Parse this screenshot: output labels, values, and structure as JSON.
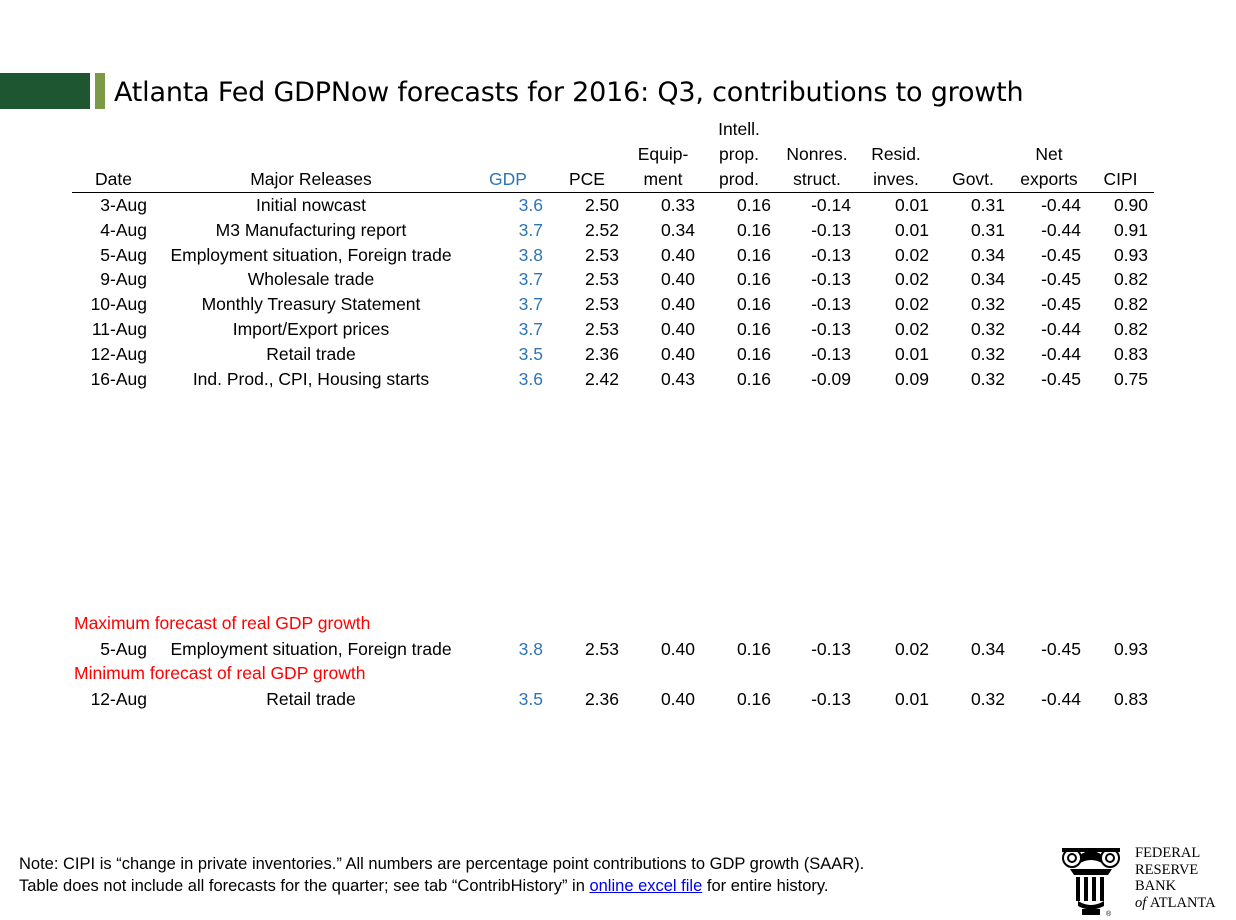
{
  "title": "Atlanta Fed GDPNow forecasts for 2016: Q3, contributions to growth",
  "columns": [
    {
      "key": "date",
      "lines": [
        "",
        "",
        "Date"
      ]
    },
    {
      "key": "release",
      "lines": [
        "",
        "",
        "Major Releases"
      ]
    },
    {
      "key": "gdp",
      "lines": [
        "",
        "",
        "GDP"
      ]
    },
    {
      "key": "pce",
      "lines": [
        "",
        "",
        "PCE"
      ]
    },
    {
      "key": "equip",
      "lines": [
        "",
        "Equip-",
        "ment"
      ]
    },
    {
      "key": "intell",
      "lines": [
        "Intell.",
        "prop.",
        "prod."
      ]
    },
    {
      "key": "nonres",
      "lines": [
        "",
        "Nonres.",
        "struct."
      ]
    },
    {
      "key": "resid",
      "lines": [
        "",
        "Resid.",
        "inves."
      ]
    },
    {
      "key": "govt",
      "lines": [
        "",
        "",
        "Govt."
      ]
    },
    {
      "key": "netexp",
      "lines": [
        "",
        "Net",
        "exports"
      ]
    },
    {
      "key": "cipi",
      "lines": [
        "",
        "",
        "CIPI"
      ]
    }
  ],
  "rows": [
    {
      "date": "3-Aug",
      "release": "Initial nowcast",
      "gdp": "3.6",
      "pce": "2.50",
      "equip": "0.33",
      "intell": "0.16",
      "nonres": "-0.14",
      "resid": "0.01",
      "govt": "0.31",
      "netexp": "-0.44",
      "cipi": "0.90"
    },
    {
      "date": "4-Aug",
      "release": "M3 Manufacturing report",
      "gdp": "3.7",
      "pce": "2.52",
      "equip": "0.34",
      "intell": "0.16",
      "nonres": "-0.13",
      "resid": "0.01",
      "govt": "0.31",
      "netexp": "-0.44",
      "cipi": "0.91"
    },
    {
      "date": "5-Aug",
      "release": "Employment situation, Foreign trade",
      "gdp": "3.8",
      "pce": "2.53",
      "equip": "0.40",
      "intell": "0.16",
      "nonres": "-0.13",
      "resid": "0.02",
      "govt": "0.34",
      "netexp": "-0.45",
      "cipi": "0.93"
    },
    {
      "date": "9-Aug",
      "release": "Wholesale trade",
      "gdp": "3.7",
      "pce": "2.53",
      "equip": "0.40",
      "intell": "0.16",
      "nonres": "-0.13",
      "resid": "0.02",
      "govt": "0.34",
      "netexp": "-0.45",
      "cipi": "0.82"
    },
    {
      "date": "10-Aug",
      "release": "Monthly Treasury Statement",
      "gdp": "3.7",
      "pce": "2.53",
      "equip": "0.40",
      "intell": "0.16",
      "nonres": "-0.13",
      "resid": "0.02",
      "govt": "0.32",
      "netexp": "-0.45",
      "cipi": "0.82"
    },
    {
      "date": "11-Aug",
      "release": "Import/Export prices",
      "gdp": "3.7",
      "pce": "2.53",
      "equip": "0.40",
      "intell": "0.16",
      "nonres": "-0.13",
      "resid": "0.02",
      "govt": "0.32",
      "netexp": "-0.44",
      "cipi": "0.82"
    },
    {
      "date": "12-Aug",
      "release": "Retail trade",
      "gdp": "3.5",
      "pce": "2.36",
      "equip": "0.40",
      "intell": "0.16",
      "nonres": "-0.13",
      "resid": "0.01",
      "govt": "0.32",
      "netexp": "-0.44",
      "cipi": "0.83"
    },
    {
      "date": "16-Aug",
      "release": "Ind. Prod., CPI, Housing starts",
      "gdp": "3.6",
      "pce": "2.42",
      "equip": "0.43",
      "intell": "0.16",
      "nonres": "-0.09",
      "resid": "0.09",
      "govt": "0.32",
      "netexp": "-0.45",
      "cipi": "0.75"
    }
  ],
  "extremes": [
    {
      "label": "Maximum forecast of real GDP growth",
      "row": {
        "date": "5-Aug",
        "release": "Employment situation, Foreign trade",
        "gdp": "3.8",
        "pce": "2.53",
        "equip": "0.40",
        "intell": "0.16",
        "nonres": "-0.13",
        "resid": "0.02",
        "govt": "0.34",
        "netexp": "-0.45",
        "cipi": "0.93"
      }
    },
    {
      "label": "Minimum forecast of real GDP growth",
      "row": {
        "date": "12-Aug",
        "release": "Retail trade",
        "gdp": "3.5",
        "pce": "2.36",
        "equip": "0.40",
        "intell": "0.16",
        "nonres": "-0.13",
        "resid": "0.01",
        "govt": "0.32",
        "netexp": "-0.44",
        "cipi": "0.83"
      }
    }
  ],
  "note": {
    "line1": "Note:  CIPI is “change in private inventories.”  All numbers are percentage point contributions to GDP growth (SAAR).",
    "line2_before": "Table does not include all forecasts for the quarter; see tab “ContribHistory” in ",
    "link_text": "online excel file",
    "line2_after": " for entire history."
  },
  "logo": {
    "lines": [
      "FEDERAL",
      "RESERVE",
      "BANK"
    ],
    "of": "of",
    "city": "ATLANTA"
  },
  "colors": {
    "accent_dark": "#1e5631",
    "accent_light": "#7c9a46",
    "gdp": "#2e75b6",
    "extreme_label": "#ff0000",
    "link": "#0000ee"
  }
}
